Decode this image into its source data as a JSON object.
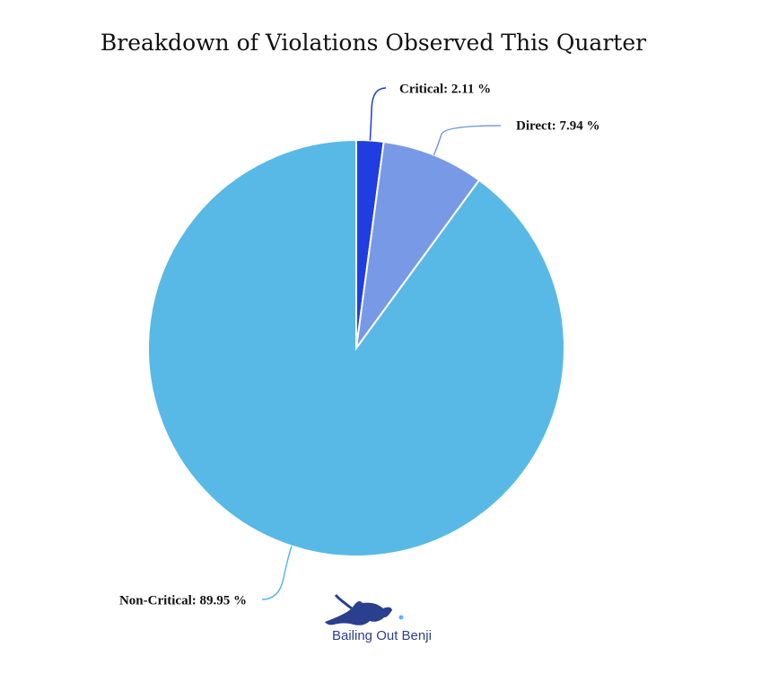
{
  "chart_data": {
    "type": "pie",
    "title": "Breakdown of Violations Observed This Quarter",
    "values": [
      2.11,
      7.94,
      89.95
    ],
    "value_labels": [
      "Critical: 2.11 %",
      "Direct: 7.94 %",
      "Non-Critical: 89.95 %"
    ],
    "colors": [
      "#1f3de0",
      "#7899e6",
      "#58b9e6"
    ],
    "watermark": "Bailing Out Benji"
  }
}
